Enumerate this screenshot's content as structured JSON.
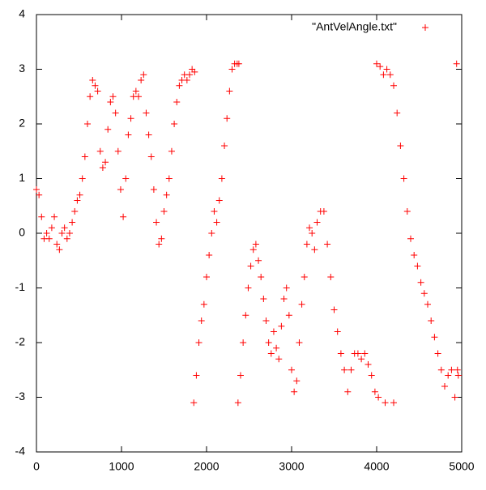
{
  "chart_data": {
    "type": "scatter",
    "xlim": [
      0,
      5000
    ],
    "xticks": [
      0,
      1000,
      2000,
      3000,
      4000,
      5000
    ],
    "ylim": [
      -4,
      4
    ],
    "yticks": [
      -4,
      -3,
      -2,
      -1,
      0,
      1,
      2,
      3,
      4
    ],
    "grid": false,
    "legend": "top-right",
    "series": [
      {
        "name": "\"AntVelAngle.txt\"",
        "color": "#ff0000",
        "x": [
          0,
          30,
          60,
          90,
          120,
          150,
          180,
          210,
          240,
          270,
          300,
          330,
          360,
          390,
          420,
          450,
          480,
          510,
          540,
          570,
          600,
          630,
          660,
          690,
          720,
          750,
          780,
          810,
          840,
          870,
          900,
          930,
          960,
          990,
          1020,
          1050,
          1080,
          1110,
          1140,
          1170,
          1200,
          1230,
          1260,
          1290,
          1320,
          1350,
          1380,
          1410,
          1440,
          1470,
          1500,
          1530,
          1560,
          1590,
          1620,
          1650,
          1680,
          1710,
          1740,
          1770,
          1800,
          1830,
          1860,
          1850,
          1880,
          1910,
          1940,
          1970,
          2000,
          2030,
          2060,
          2090,
          2120,
          2150,
          2180,
          2210,
          2240,
          2270,
          2300,
          2330,
          2360,
          2380,
          2370,
          2400,
          2430,
          2460,
          2490,
          2520,
          2550,
          2580,
          2610,
          2640,
          2670,
          2700,
          2730,
          2760,
          2790,
          2820,
          2850,
          2880,
          2910,
          2940,
          2970,
          3000,
          3030,
          3060,
          3090,
          3120,
          3150,
          3180,
          3210,
          3240,
          3270,
          3300,
          3340,
          3380,
          3420,
          3460,
          3500,
          3540,
          3580,
          3620,
          3660,
          3700,
          3740,
          3780,
          3820,
          3860,
          3900,
          3940,
          3980,
          4020,
          4100,
          4200,
          4000,
          4040,
          4080,
          4120,
          4160,
          4200,
          4240,
          4280,
          4320,
          4360,
          4400,
          4440,
          4480,
          4520,
          4560,
          4600,
          4640,
          4680,
          4720,
          4760,
          4800,
          4840,
          4880,
          4920,
          4940,
          4950,
          4960
        ],
        "values": [
          0.8,
          0.7,
          0.3,
          -0.1,
          0,
          -0.1,
          0.1,
          0.3,
          -0.2,
          -0.3,
          0,
          0.1,
          -0.1,
          0,
          0.2,
          0.4,
          0.6,
          0.7,
          1.0,
          1.4,
          2.0,
          2.5,
          2.8,
          2.7,
          2.6,
          1.5,
          1.2,
          1.3,
          1.9,
          2.4,
          2.5,
          2.2,
          1.5,
          0.8,
          0.3,
          1.0,
          1.8,
          2.1,
          2.5,
          2.6,
          2.5,
          2.8,
          2.9,
          2.2,
          1.8,
          1.4,
          0.8,
          0.2,
          -0.2,
          -0.1,
          0.4,
          0.7,
          1.0,
          1.5,
          2.0,
          2.4,
          2.7,
          2.8,
          2.9,
          2.8,
          2.9,
          3.0,
          2.95,
          -3.1,
          -2.6,
          -2.0,
          -1.6,
          -1.3,
          -0.8,
          -0.4,
          0,
          0.4,
          0.2,
          0.6,
          1.0,
          1.6,
          2.1,
          2.6,
          3.0,
          3.1,
          3.1,
          3.1,
          -3.1,
          -2.6,
          -2.0,
          -1.5,
          -1.0,
          -0.6,
          -0.3,
          -0.2,
          -0.5,
          -0.8,
          -1.2,
          -1.6,
          -2.0,
          -2.2,
          -1.8,
          -2.1,
          -2.3,
          -1.7,
          -1.2,
          -1.0,
          -1.5,
          -2.5,
          -2.9,
          -2.7,
          -2.0,
          -1.3,
          -0.8,
          -0.2,
          0.1,
          0,
          -0.3,
          0.2,
          0.4,
          0.4,
          -0.2,
          -0.8,
          -1.4,
          -1.8,
          -2.2,
          -2.5,
          -2.9,
          -2.5,
          -2.2,
          -2.2,
          -2.3,
          -2.2,
          -2.4,
          -2.6,
          -2.9,
          -3.0,
          -3.1,
          -3.1,
          3.1,
          3.05,
          2.9,
          3.0,
          2.9,
          2.7,
          2.2,
          1.6,
          1.0,
          0.4,
          -0.1,
          -0.4,
          -0.6,
          -0.9,
          -1.1,
          -1.3,
          -1.6,
          -1.9,
          -2.2,
          -2.5,
          -2.8,
          -2.6,
          -2.5,
          -3.0,
          3.1,
          -2.5,
          -2.6
        ]
      }
    ]
  }
}
